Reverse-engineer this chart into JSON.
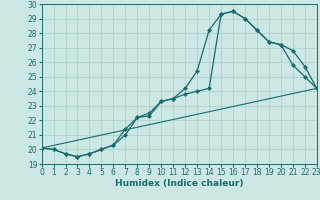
{
  "xlabel": "Humidex (Indice chaleur)",
  "bg_color": "#cce8e4",
  "line_color": "#1a6b6b",
  "grid_color": "#aacfcc",
  "xlim": [
    0,
    23
  ],
  "ylim": [
    19,
    30
  ],
  "xticks": [
    0,
    1,
    2,
    3,
    4,
    5,
    6,
    7,
    8,
    9,
    10,
    11,
    12,
    13,
    14,
    15,
    16,
    17,
    18,
    19,
    20,
    21,
    22,
    23
  ],
  "yticks": [
    19,
    20,
    21,
    22,
    23,
    24,
    25,
    26,
    27,
    28,
    29,
    30
  ],
  "line1_x": [
    0,
    1,
    2,
    3,
    4,
    5,
    6,
    7,
    8,
    9,
    10,
    11,
    12,
    13,
    14,
    15,
    16,
    17,
    18,
    19,
    20,
    21,
    22,
    23
  ],
  "line1_y": [
    20.1,
    20.0,
    19.7,
    19.5,
    19.7,
    20.0,
    20.3,
    21.0,
    22.2,
    22.3,
    23.3,
    23.5,
    24.2,
    25.4,
    28.2,
    29.3,
    29.5,
    29.0,
    28.2,
    27.4,
    27.2,
    25.8,
    25.0,
    24.2
  ],
  "line2_x": [
    0,
    1,
    2,
    3,
    4,
    5,
    6,
    7,
    8,
    9,
    10,
    11,
    12,
    13,
    14,
    15,
    16,
    17,
    18,
    19,
    20,
    21,
    22,
    23
  ],
  "line2_y": [
    20.1,
    20.0,
    19.7,
    19.5,
    19.7,
    20.0,
    20.3,
    21.4,
    22.2,
    22.5,
    23.3,
    23.5,
    23.8,
    24.0,
    24.2,
    29.3,
    29.5,
    29.0,
    28.2,
    27.4,
    27.2,
    26.8,
    25.7,
    24.2
  ],
  "line3_x": [
    0,
    23
  ],
  "line3_y": [
    20.1,
    24.2
  ]
}
